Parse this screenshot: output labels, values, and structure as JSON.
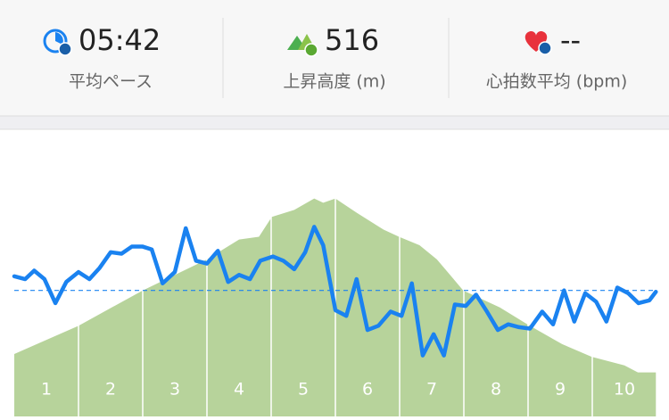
{
  "stats": [
    {
      "value": "05:42",
      "label": "平均ペース"
    },
    {
      "value": "516",
      "label": "上昇高度 (m)"
    },
    {
      "value": "--",
      "label": "心拍数平均 (bpm)"
    }
  ],
  "chart_data": {
    "type": "area-line",
    "categories": [
      "1",
      "2",
      "3",
      "4",
      "5",
      "6",
      "7",
      "8",
      "9",
      "10"
    ],
    "xlim": [
      0,
      10
    ],
    "ylim": [
      0,
      100
    ],
    "splits": [
      1,
      2,
      3,
      4,
      5,
      6,
      7,
      8,
      9
    ],
    "average": 43,
    "series": [
      {
        "color": "#b7d39b",
        "x": [
          0,
          1,
          2,
          3,
          3.5,
          3.81,
          4.01,
          4.36,
          4.67,
          4.81,
          5,
          5.33,
          5.75,
          5.99,
          6.31,
          6.58,
          6.99,
          7.56,
          7.99,
          8.53,
          8.99,
          9.5,
          9.71,
          9.99
        ],
        "values": [
          20.5,
          30.5,
          43,
          54,
          61,
          62,
          69,
          71.5,
          75.5,
          74,
          75.5,
          70.5,
          64.5,
          62,
          59,
          54,
          43,
          37,
          31,
          24,
          19.5,
          16.5,
          14,
          14
        ]
      },
      {
        "color": "#1a82f0",
        "x": [
          0,
          0.17,
          0.31,
          0.47,
          0.64,
          0.81,
          1,
          1.17,
          1.33,
          1.5,
          1.67,
          1.83,
          2,
          2.14,
          2.31,
          2.5,
          2.67,
          2.83,
          3,
          3.17,
          3.33,
          3.5,
          3.67,
          3.83,
          4.03,
          4.19,
          4.36,
          4.53,
          4.67,
          4.81,
          5,
          5.17,
          5.33,
          5.5,
          5.67,
          5.86,
          6.03,
          6.19,
          6.36,
          6.53,
          6.69,
          6.86,
          7.03,
          7.19,
          7.36,
          7.53,
          7.69,
          7.86,
          8.03,
          8.22,
          8.39,
          8.56,
          8.72,
          8.89,
          9.06,
          9.22,
          9.39,
          9.56,
          9.72,
          9.89,
          9.99
        ],
        "values": [
          48,
          47,
          50,
          47,
          38.5,
          46,
          49.5,
          47,
          51,
          56.5,
          56,
          58.5,
          58.5,
          57.5,
          45.5,
          49.5,
          65,
          53.5,
          52.5,
          57,
          46,
          48.5,
          47,
          53.5,
          55,
          53.5,
          50.5,
          56.5,
          65.5,
          59,
          36,
          34,
          47,
          29,
          30.5,
          35.5,
          34,
          45.5,
          20,
          27.5,
          20,
          38,
          37.5,
          41.5,
          35.5,
          29,
          31,
          30,
          29.5,
          35.5,
          31,
          43,
          32,
          42,
          39,
          32,
          44,
          42,
          38.5,
          39.5,
          42.5
        ]
      }
    ]
  }
}
